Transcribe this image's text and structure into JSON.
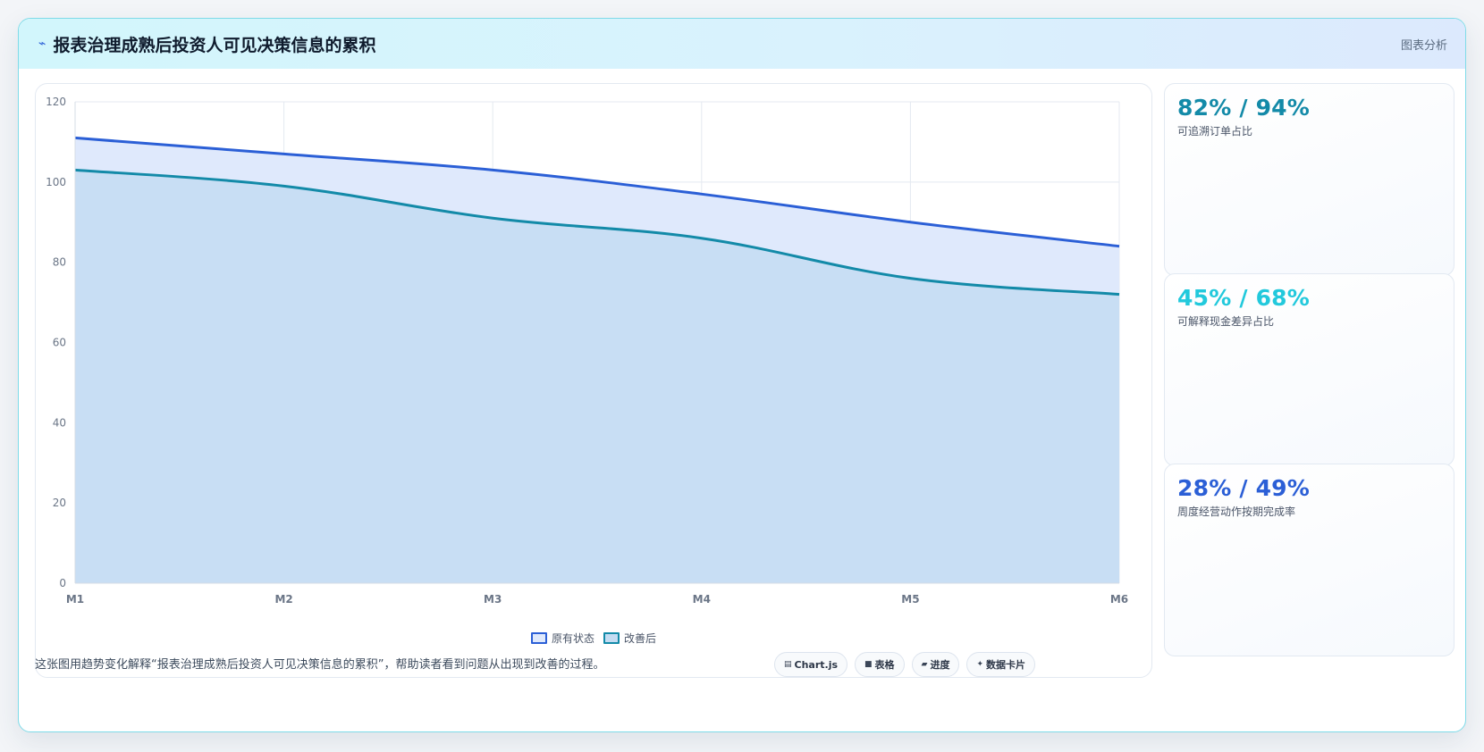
{
  "header": {
    "icon": "pulse-icon",
    "title": "报表治理成熟后投资人可见决策信息的累积",
    "tag": "图表分析"
  },
  "chart_data": {
    "type": "area",
    "categories": [
      "M1",
      "M2",
      "M3",
      "M4",
      "M5",
      "M6"
    ],
    "series": [
      {
        "name": "原有状态",
        "values": [
          111,
          107,
          103,
          97,
          90,
          84
        ],
        "stroke": "#2b5fd6",
        "fill": "#dfe9fc"
      },
      {
        "name": "改善后",
        "values": [
          103,
          99,
          91,
          86,
          76,
          72
        ],
        "stroke": "#138aa8",
        "fill": "#c4dcf2"
      }
    ],
    "ylim": [
      0,
      120
    ],
    "yticks": [
      0,
      20,
      40,
      60,
      80,
      100,
      120
    ],
    "grid": true,
    "legend": "bottom-center"
  },
  "kpis": [
    {
      "value": "82% / 94%",
      "label": "可追溯订单占比",
      "color": "#138aa8"
    },
    {
      "value": "45% / 68%",
      "label": "可解释现金差异占比",
      "color": "#22c9dc"
    },
    {
      "value": "28% / 49%",
      "label": "周度经营动作按期完成率",
      "color": "#2b5fd6"
    }
  ],
  "footer": {
    "text": "这张图用趋势变化解释“报表治理成熟后投资人可见决策信息的累积”，帮助读者看到问题从出现到改善的过程。"
  },
  "chips": [
    {
      "icon": "chart-icon",
      "glyph": "▤",
      "label": "Chart.js"
    },
    {
      "icon": "table-icon",
      "glyph": "■",
      "label": "表格"
    },
    {
      "icon": "progress-icon",
      "glyph": "▰",
      "label": "进度"
    },
    {
      "icon": "sparkle-icon",
      "glyph": "✦",
      "label": "数据卡片"
    }
  ]
}
